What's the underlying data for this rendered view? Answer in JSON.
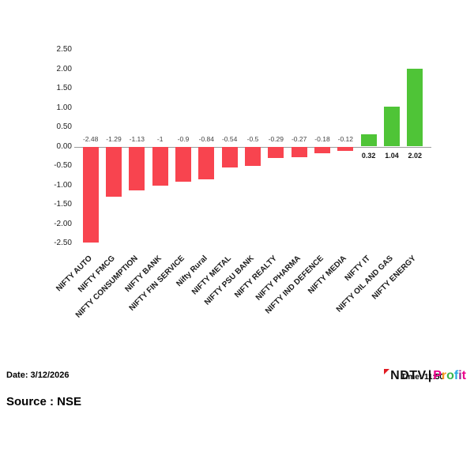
{
  "chart_data": {
    "type": "bar",
    "title": "",
    "xlabel": "",
    "ylabel": "",
    "categories": [
      "NIFTY AUTO",
      "NIFTY FMCG",
      "NIFTY CONSUMPTION",
      "NIFTY BANK",
      "NIFTY FIN SERVICE",
      "Nifty Rural",
      "NIFTY METAL",
      "NIFTY PSU BANK",
      "NIFTY REALTY",
      "NIFTY PHARMA",
      "NIFTY IND DEFENCE",
      "NIFTY MEDIA",
      "NIFTY IT",
      "NIFTY OIL AND GAS",
      "NIFTY ENERGY"
    ],
    "values": [
      -2.48,
      -1.29,
      -1.13,
      -1,
      -0.9,
      -0.84,
      -0.54,
      -0.5,
      -0.29,
      -0.27,
      -0.18,
      -0.12,
      0.32,
      1.04,
      2.02
    ],
    "value_labels": [
      "-2.48",
      "-1.29",
      "-1.13",
      "-1",
      "-0.9",
      "-0.84",
      "-0.54",
      "-0.5",
      "-0.29",
      "-0.27",
      "-0.18",
      "-0.12",
      "0.32",
      "1.04",
      "2.02"
    ],
    "yticks": [
      "2.50",
      "2.00",
      "1.50",
      "1.00",
      "0.50",
      "0.00",
      "-0.50",
      "-1.00",
      "-1.50",
      "-2.00",
      "-2.50"
    ],
    "ylim": [
      -2.5,
      2.5
    ],
    "grid": false,
    "legend": "none",
    "colors": {
      "positive": "#4fc437",
      "negative": "#f8444f"
    }
  },
  "footer": {
    "date_label": "Date: 3/12/2026",
    "source_label": "Source : NSE",
    "time_label": "Time: 11:50",
    "logo": {
      "ndtv": "NDTV",
      "separator": "|",
      "profit_letters": [
        {
          "ch": "P",
          "color": "#ec008c"
        },
        {
          "ch": "r",
          "color": "#f7941d"
        },
        {
          "ch": "o",
          "color": "#39b54a"
        },
        {
          "ch": "f",
          "color": "#27aae1"
        },
        {
          "ch": "i",
          "color": "#92278f"
        },
        {
          "ch": "t",
          "color": "#ec008c"
        }
      ]
    }
  }
}
